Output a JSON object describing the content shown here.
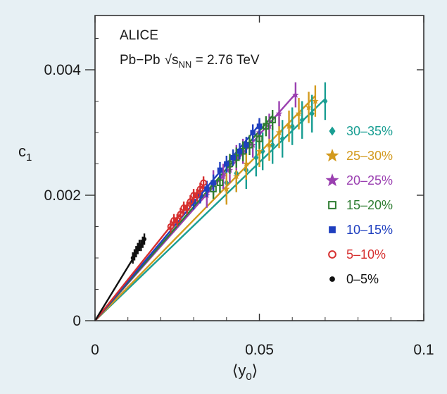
{
  "chart_data": {
    "type": "scatter",
    "title": "",
    "header": {
      "experiment": "ALICE",
      "system": "Pb−Pb",
      "sqrt": "√",
      "s": "s",
      "sub": "NN",
      "energy": " = 2.76 TeV"
    },
    "xlabel": {
      "pre": "⟨y",
      "sub": "0",
      "post": "⟩"
    },
    "ylabel": {
      "main": "c",
      "sub": "1"
    },
    "xlim": [
      0,
      0.1
    ],
    "ylim": [
      0,
      0.0048
    ],
    "xticks": [
      0,
      0.05,
      0.1
    ],
    "xtick_labels": [
      "0",
      "0.05",
      "0.1"
    ],
    "yticks": [
      0,
      0.002,
      0.004
    ],
    "ytick_labels": [
      "0",
      "0.002",
      "0.004"
    ],
    "series": [
      {
        "name": "30–35%",
        "color": "#1a9e93",
        "marker": "diamond",
        "slope": 0.0505,
        "fit_x": 0.07,
        "points": [
          [
            0.04,
            0.0022
          ],
          [
            0.043,
            0.00235
          ],
          [
            0.046,
            0.0024
          ],
          [
            0.049,
            0.0026
          ],
          [
            0.051,
            0.0027
          ],
          [
            0.054,
            0.0028
          ],
          [
            0.057,
            0.0029
          ],
          [
            0.06,
            0.0031
          ],
          [
            0.063,
            0.0032
          ],
          [
            0.066,
            0.0033
          ],
          [
            0.07,
            0.0035
          ]
        ],
        "err_y": 0.0003
      },
      {
        "name": "25–30%",
        "color": "#d39a1e",
        "marker": "star",
        "slope": 0.0535,
        "fit_x": 0.067,
        "points": [
          [
            0.04,
            0.0021
          ],
          [
            0.043,
            0.0023
          ],
          [
            0.046,
            0.0025
          ],
          [
            0.05,
            0.0027
          ],
          [
            0.053,
            0.0028
          ],
          [
            0.056,
            0.003
          ],
          [
            0.059,
            0.0031
          ],
          [
            0.062,
            0.0033
          ],
          [
            0.065,
            0.0034
          ],
          [
            0.067,
            0.0035
          ]
        ],
        "err_y": 0.00025
      },
      {
        "name": "20–25%",
        "color": "#9a3fb0",
        "marker": "star",
        "slope": 0.0593,
        "fit_x": 0.061,
        "points": [
          [
            0.034,
            0.002
          ],
          [
            0.036,
            0.0022
          ],
          [
            0.039,
            0.0023
          ],
          [
            0.041,
            0.0024
          ],
          [
            0.043,
            0.0026
          ],
          [
            0.045,
            0.0027
          ],
          [
            0.048,
            0.0028
          ],
          [
            0.05,
            0.003
          ],
          [
            0.053,
            0.0031
          ],
          [
            0.056,
            0.0033
          ],
          [
            0.061,
            0.0036
          ]
        ],
        "err_y": 0.0002
      },
      {
        "name": "15–20%",
        "color": "#2e7d32",
        "marker": "square-open",
        "slope": 0.0605,
        "fit_x": 0.054,
        "points": [
          [
            0.036,
            0.0021
          ],
          [
            0.038,
            0.0022
          ],
          [
            0.041,
            0.0025
          ],
          [
            0.043,
            0.0026
          ],
          [
            0.045,
            0.0027
          ],
          [
            0.047,
            0.0028
          ],
          [
            0.05,
            0.0029
          ],
          [
            0.052,
            0.0031
          ],
          [
            0.054,
            0.0032
          ]
        ],
        "err_y": 0.00016
      },
      {
        "name": "10–15%",
        "color": "#1f3fbf",
        "marker": "square",
        "slope": 0.0625,
        "fit_x": 0.05,
        "points": [
          [
            0.03,
            0.0019
          ],
          [
            0.032,
            0.002
          ],
          [
            0.034,
            0.0021
          ],
          [
            0.036,
            0.0022
          ],
          [
            0.038,
            0.0024
          ],
          [
            0.04,
            0.0025
          ],
          [
            0.042,
            0.0026
          ],
          [
            0.044,
            0.0027
          ],
          [
            0.046,
            0.0028
          ],
          [
            0.048,
            0.003
          ],
          [
            0.05,
            0.0031
          ]
        ],
        "err_y": 0.00013
      },
      {
        "name": "5–10%",
        "color": "#d62f2f",
        "marker": "circle-open",
        "slope": 0.0655,
        "fit_x": 0.033,
        "points": [
          [
            0.023,
            0.0015
          ],
          [
            0.024,
            0.0016
          ],
          [
            0.025,
            0.0016
          ],
          [
            0.026,
            0.0017
          ],
          [
            0.027,
            0.0018
          ],
          [
            0.028,
            0.0018
          ],
          [
            0.029,
            0.0019
          ],
          [
            0.03,
            0.002
          ],
          [
            0.031,
            0.002
          ],
          [
            0.032,
            0.0021
          ],
          [
            0.033,
            0.0022
          ]
        ],
        "err_y": 0.0001
      },
      {
        "name": "0–5%",
        "color": "#111111",
        "marker": "dot",
        "slope": 0.0858,
        "fit_x": 0.015,
        "points": [
          [
            0.0115,
            0.001
          ],
          [
            0.012,
            0.00105
          ],
          [
            0.0125,
            0.0011
          ],
          [
            0.013,
            0.00115
          ],
          [
            0.0135,
            0.0012
          ],
          [
            0.014,
            0.0012
          ],
          [
            0.0145,
            0.00125
          ],
          [
            0.015,
            0.0013
          ]
        ],
        "err_y": 9e-05
      }
    ],
    "legend_order": [
      0,
      1,
      2,
      3,
      4,
      5,
      6
    ],
    "legend_placement": "right",
    "grid": false
  }
}
